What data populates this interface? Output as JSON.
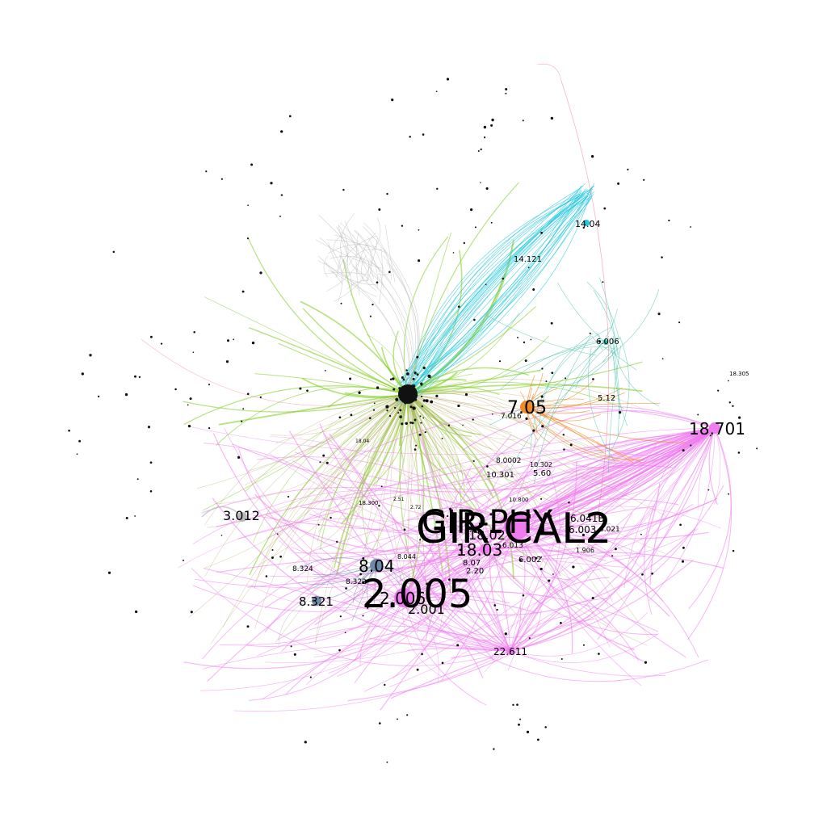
{
  "graph": {
    "colors": {
      "green": "#7ccc1a",
      "cyan": "#22c8e0",
      "pink": "#f07cf0",
      "orange": "#f08a24",
      "grey": "#b8b8b8",
      "olive": "#b4a060",
      "teal": "#2ab7a0",
      "slate": "#6f8aa8",
      "red": "#f07090",
      "dark": "#111111"
    },
    "hubs": [
      {
        "id": "hub-center",
        "label": "",
        "color": "dark"
      },
      {
        "id": "hub-gir",
        "label": "GIR-CAL2",
        "color": "pink"
      },
      {
        "id": "hub-2005",
        "label": "2.005",
        "color": "pink"
      },
      {
        "id": "hub-1870",
        "label": "18.701",
        "color": "pink"
      },
      {
        "id": "hub-705",
        "label": "7.05",
        "color": "orange"
      },
      {
        "id": "hub-3012",
        "label": "3.012",
        "color": "grey"
      },
      {
        "id": "hub-804",
        "label": "8.04",
        "color": "slate"
      },
      {
        "id": "hub-8321",
        "label": "8.321",
        "color": "slate"
      },
      {
        "id": "hub-1803",
        "label": "18.03",
        "color": "pink"
      },
      {
        "id": "hub-1404",
        "label": "14.04",
        "color": "cyan"
      },
      {
        "id": "hub-6006",
        "label": "6.006",
        "color": "teal"
      },
      {
        "id": "hub-2261",
        "label": "22.611",
        "color": "pink"
      }
    ],
    "labels": [
      {
        "label": "2.001",
        "color": "pink"
      },
      {
        "label": "2.006",
        "color": "pink"
      },
      {
        "label": "6.041B",
        "color": "pink"
      },
      {
        "label": "6.003",
        "color": "pink"
      },
      {
        "label": "6.002",
        "color": "pink"
      },
      {
        "label": "14.121",
        "color": "cyan"
      },
      {
        "label": "5.12",
        "color": "orange"
      },
      {
        "label": "10.301",
        "color": "olive"
      },
      {
        "label": "5.60",
        "color": "olive"
      },
      {
        "label": "8.324",
        "color": "slate"
      },
      {
        "label": "8.322",
        "color": "slate"
      },
      {
        "label": "8.044",
        "color": "slate"
      },
      {
        "label": "18.305",
        "color": "pink"
      },
      {
        "label": "7.016",
        "color": "orange"
      },
      {
        "label": "8.07",
        "color": "pink"
      },
      {
        "label": "2.20",
        "color": "pink"
      },
      {
        "label": "6.013",
        "color": "pink"
      },
      {
        "label": "18.300",
        "color": "olive"
      },
      {
        "label": "10.800",
        "color": "olive"
      },
      {
        "label": "8.0002",
        "color": "olive"
      },
      {
        "label": "18.02",
        "color": "pink"
      },
      {
        "label": "10.302",
        "color": "olive"
      },
      {
        "label": "2.51",
        "color": "olive"
      },
      {
        "label": "2.72",
        "color": "pink"
      },
      {
        "label": "18.04",
        "color": "pink"
      },
      {
        "label": "1.906",
        "color": "pink"
      },
      {
        "label": "6.021",
        "color": "pink"
      },
      {
        "label": "GIR-PHY",
        "color": "pink"
      }
    ]
  }
}
